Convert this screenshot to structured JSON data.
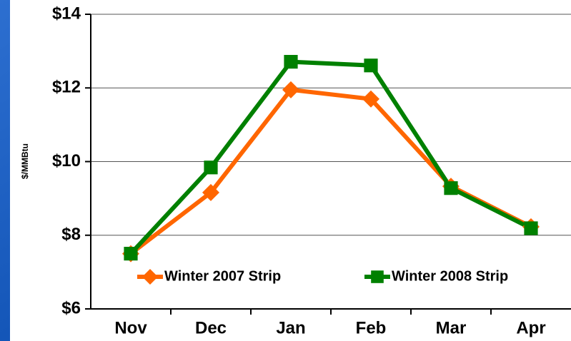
{
  "chart_data": {
    "type": "line",
    "y_label": "$/MMBtu",
    "categories": [
      "Nov",
      "Dec",
      "Jan",
      "Feb",
      "Mar",
      "Apr"
    ],
    "series": [
      {
        "name": "Winter 2007 Strip",
        "color": "#ff6600",
        "marker": "diamond",
        "values": [
          7.5,
          9.16,
          11.95,
          11.7,
          9.33,
          8.23
        ]
      },
      {
        "name": "Winter 2008 Strip",
        "color": "#008000",
        "marker": "square",
        "values": [
          7.5,
          9.84,
          12.71,
          12.61,
          9.28,
          8.19
        ]
      }
    ],
    "ylim": [
      6,
      14
    ],
    "yticks": [
      {
        "value": 6,
        "label": "$6"
      },
      {
        "value": 8,
        "label": "$8"
      },
      {
        "value": 10,
        "label": "$10"
      },
      {
        "value": 12,
        "label": "$12"
      },
      {
        "value": 14,
        "label": "$14"
      }
    ],
    "grid": true,
    "legend": "bottom"
  }
}
